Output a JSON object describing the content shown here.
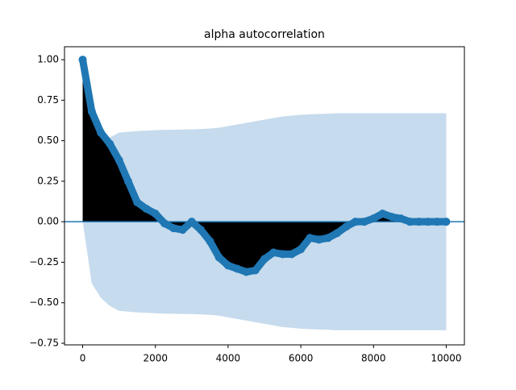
{
  "chart_data": {
    "type": "acf",
    "title": "alpha autocorrelation",
    "x": [
      0,
      250,
      500,
      750,
      1000,
      1250,
      1500,
      1750,
      2000,
      2250,
      2500,
      2750,
      3000,
      3250,
      3500,
      3750,
      4000,
      4250,
      4500,
      4750,
      5000,
      5250,
      5500,
      5750,
      6000,
      6250,
      6500,
      6750,
      7000,
      7250,
      7500,
      7750,
      8000,
      8250,
      8500,
      8750,
      9000,
      9250,
      9500,
      9750,
      10000
    ],
    "values": [
      1.0,
      0.68,
      0.55,
      0.48,
      0.38,
      0.25,
      0.12,
      0.08,
      0.05,
      -0.01,
      -0.04,
      -0.05,
      0.0,
      -0.05,
      -0.12,
      -0.22,
      -0.27,
      -0.29,
      -0.31,
      -0.3,
      -0.23,
      -0.19,
      -0.2,
      -0.2,
      -0.17,
      -0.1,
      -0.11,
      -0.1,
      -0.07,
      -0.03,
      0.0,
      0.0,
      0.02,
      0.05,
      0.03,
      0.02,
      0.0,
      0.0,
      0.0,
      0.0,
      0.0
    ],
    "band_upper": [
      0.0,
      0.38,
      0.47,
      0.52,
      0.55,
      0.555,
      0.56,
      0.562,
      0.565,
      0.567,
      0.568,
      0.569,
      0.57,
      0.572,
      0.575,
      0.58,
      0.59,
      0.6,
      0.61,
      0.62,
      0.63,
      0.64,
      0.65,
      0.655,
      0.66,
      0.663,
      0.665,
      0.667,
      0.67,
      0.67,
      0.67,
      0.67,
      0.67,
      0.67,
      0.67,
      0.67,
      0.67,
      0.67,
      0.67,
      0.67,
      0.67
    ],
    "band_lower": [
      0.0,
      -0.38,
      -0.47,
      -0.52,
      -0.55,
      -0.555,
      -0.56,
      -0.562,
      -0.565,
      -0.567,
      -0.568,
      -0.569,
      -0.57,
      -0.572,
      -0.575,
      -0.58,
      -0.59,
      -0.6,
      -0.61,
      -0.62,
      -0.63,
      -0.64,
      -0.65,
      -0.655,
      -0.66,
      -0.663,
      -0.665,
      -0.667,
      -0.67,
      -0.67,
      -0.67,
      -0.67,
      -0.67,
      -0.67,
      -0.67,
      -0.67,
      -0.67,
      -0.67,
      -0.67,
      -0.67,
      -0.67
    ],
    "color": "#1f77b4",
    "band_color": "#c6dbed",
    "stem_color": "#000000",
    "xlim": [
      -500,
      10500
    ],
    "ylim": [
      -0.76,
      1.08
    ],
    "xticks": [
      0,
      2000,
      4000,
      6000,
      8000,
      10000
    ],
    "yticks": [
      {
        "value": -0.75,
        "label": "−0.75"
      },
      {
        "value": -0.5,
        "label": "−0.50"
      },
      {
        "value": -0.25,
        "label": "−0.25"
      },
      {
        "value": 0,
        "label": "0.00"
      },
      {
        "value": 0.25,
        "label": "0.25"
      },
      {
        "value": 0.5,
        "label": "0.50"
      },
      {
        "value": 0.75,
        "label": "0.75"
      },
      {
        "value": 1.0,
        "label": "1.00"
      }
    ]
  }
}
